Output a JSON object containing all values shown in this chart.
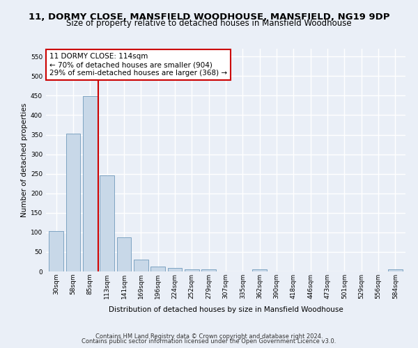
{
  "title": "11, DORMY CLOSE, MANSFIELD WOODHOUSE, MANSFIELD, NG19 9DP",
  "subtitle": "Size of property relative to detached houses in Mansfield Woodhouse",
  "xlabel": "Distribution of detached houses by size in Mansfield Woodhouse",
  "ylabel": "Number of detached properties",
  "footer_line1": "Contains HM Land Registry data © Crown copyright and database right 2024.",
  "footer_line2": "Contains public sector information licensed under the Open Government Licence v3.0.",
  "bar_labels": [
    "30sqm",
    "58sqm",
    "85sqm",
    "113sqm",
    "141sqm",
    "169sqm",
    "196sqm",
    "224sqm",
    "252sqm",
    "279sqm",
    "307sqm",
    "335sqm",
    "362sqm",
    "390sqm",
    "418sqm",
    "446sqm",
    "473sqm",
    "501sqm",
    "529sqm",
    "556sqm",
    "584sqm"
  ],
  "bar_values": [
    103,
    353,
    448,
    246,
    88,
    30,
    13,
    9,
    5,
    5,
    0,
    0,
    5,
    0,
    0,
    0,
    0,
    0,
    0,
    0,
    5
  ],
  "bar_color": "#c8d8e8",
  "bar_edgecolor": "#5a8ab0",
  "annotation_text": "11 DORMY CLOSE: 114sqm\n← 70% of detached houses are smaller (904)\n29% of semi-detached houses are larger (368) →",
  "annotation_box_color": "#ffffff",
  "annotation_box_edgecolor": "#cc0000",
  "vline_color": "#cc0000",
  "ylim": [
    0,
    570
  ],
  "yticks": [
    0,
    50,
    100,
    150,
    200,
    250,
    300,
    350,
    400,
    450,
    500,
    550
  ],
  "bg_color": "#eaeff7",
  "plot_bg_color": "#eaeff7",
  "grid_color": "#ffffff",
  "title_fontsize": 9.5,
  "subtitle_fontsize": 8.5,
  "axis_label_fontsize": 7.5,
  "tick_fontsize": 6.5,
  "annotation_fontsize": 7.5,
  "footer_fontsize": 6.0
}
